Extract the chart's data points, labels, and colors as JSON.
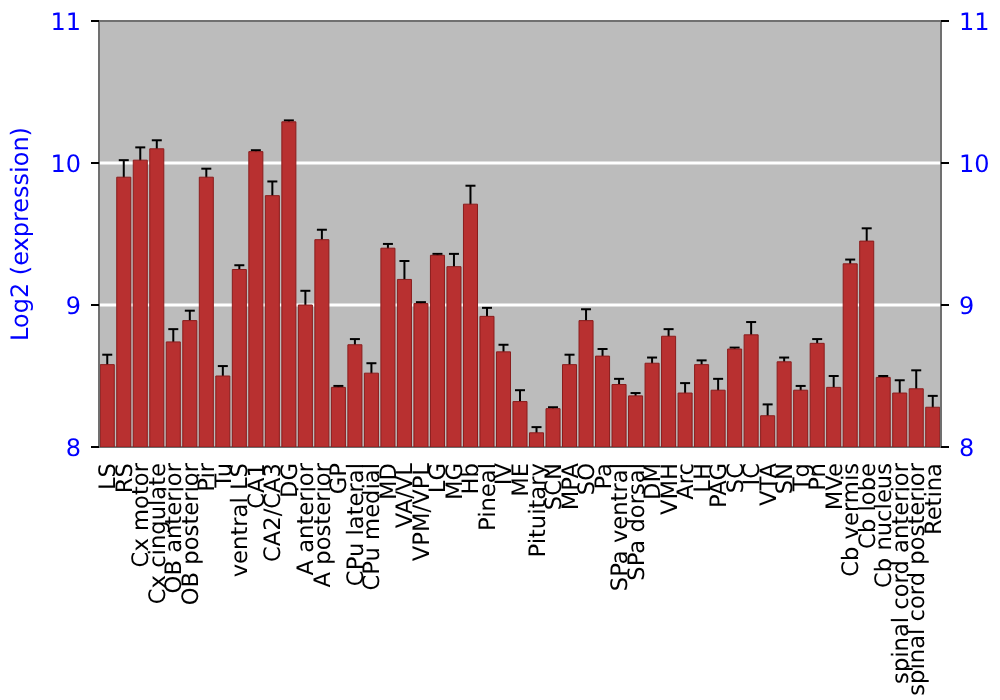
{
  "chart_data": {
    "type": "bar",
    "ylabel": "Log2 (expression)",
    "categories": [
      "LS",
      "RS",
      "Cx motor",
      "Cx cingulate",
      "OB anterior",
      "OB posterior",
      "Pir",
      "Tu",
      "ventral LS",
      "CA1",
      "CA2/CA3",
      "DG",
      "A anterior",
      "A posterior",
      "GP",
      "CPu lateral",
      "CPu medial",
      "MD",
      "VA/VL",
      "VPM/VPL",
      "LG",
      "MG",
      "Hb",
      "Pineal",
      "IV",
      "ME",
      "Pituitary",
      "SCN",
      "MPA",
      "SO",
      "Pa",
      "SPa ventral",
      "SPa dorsal",
      "DM",
      "VMH",
      "Arc",
      "LH",
      "PAG",
      "SC",
      "IC",
      "VTA",
      "SN",
      "Tg",
      "Pn",
      "MVe",
      "Cb vermis",
      "Cb lobe",
      "Cb nucleus",
      "spinal cord anterior",
      "spinal cord posterior",
      "Retina"
    ],
    "values": [
      8.58,
      9.9,
      10.02,
      10.1,
      8.74,
      8.89,
      9.9,
      8.5,
      9.25,
      10.08,
      9.77,
      10.29,
      9.0,
      9.46,
      8.42,
      8.72,
      8.52,
      9.4,
      9.18,
      9.01,
      9.35,
      9.27,
      9.71,
      8.92,
      8.67,
      8.32,
      8.1,
      8.27,
      8.58,
      8.89,
      8.64,
      8.44,
      8.36,
      8.59,
      8.78,
      8.38,
      8.58,
      8.4,
      8.69,
      8.79,
      8.22,
      8.6,
      8.4,
      8.73,
      8.42,
      9.29,
      9.45,
      8.49,
      8.38,
      8.41,
      8.28
    ],
    "errors": [
      0.07,
      0.12,
      0.09,
      0.06,
      0.09,
      0.07,
      0.06,
      0.07,
      0.03,
      0.01,
      0.1,
      0.01,
      0.1,
      0.07,
      0.01,
      0.04,
      0.07,
      0.03,
      0.13,
      0.01,
      0.01,
      0.09,
      0.13,
      0.06,
      0.05,
      0.08,
      0.04,
      0.01,
      0.07,
      0.08,
      0.05,
      0.04,
      0.02,
      0.04,
      0.05,
      0.07,
      0.03,
      0.08,
      0.01,
      0.09,
      0.08,
      0.03,
      0.03,
      0.03,
      0.08,
      0.03,
      0.09,
      0.01,
      0.09,
      0.13,
      0.08
    ],
    "color": "#b83030",
    "ylim": [
      8,
      11
    ],
    "yticks": [
      8,
      9,
      10,
      11
    ],
    "y2lim": [
      8,
      11
    ],
    "y2ticks": [
      8,
      9,
      10,
      11
    ],
    "grid": "y"
  }
}
